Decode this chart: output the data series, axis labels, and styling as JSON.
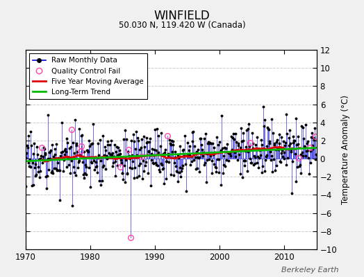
{
  "title": "WINFIELD",
  "subtitle": "50.030 N, 119.420 W (Canada)",
  "ylabel": "Temperature Anomaly (°C)",
  "credit": "Berkeley Earth",
  "xlim": [
    1970,
    2015
  ],
  "ylim": [
    -10,
    12
  ],
  "yticks": [
    -10,
    -8,
    -6,
    -4,
    -2,
    0,
    2,
    4,
    6,
    8,
    10,
    12
  ],
  "xticks": [
    1970,
    1980,
    1990,
    2000,
    2010
  ],
  "bg_color": "#f0f0f0",
  "plot_bg_color": "#ffffff",
  "raw_color": "#0000dd",
  "qc_fail_color": "#ff44aa",
  "moving_avg_color": "#dd0000",
  "trend_color": "#00bb00",
  "grid_color": "#cccccc",
  "seed": 17
}
